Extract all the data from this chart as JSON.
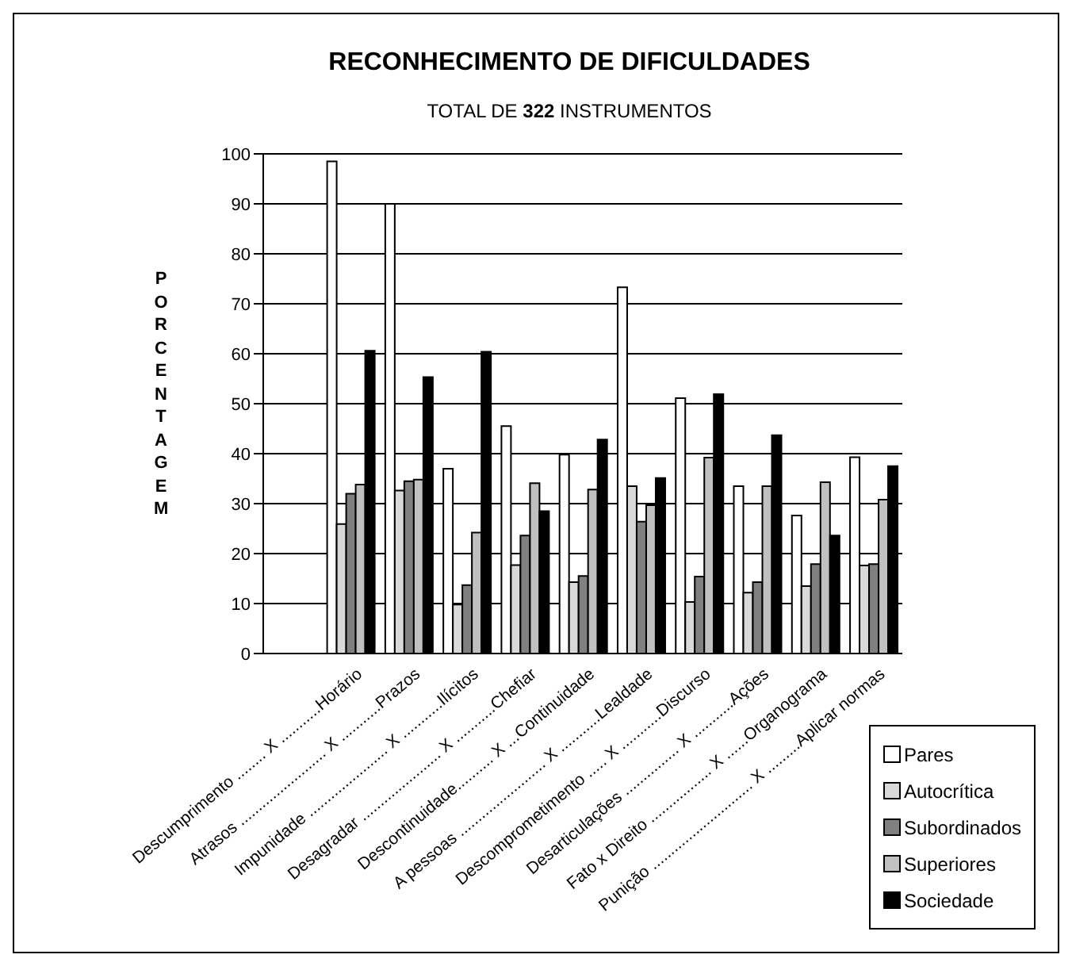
{
  "chart_data": {
    "type": "bar",
    "title": "RECONHECIMENTO DE DIFICULDADES",
    "subtitle": "TOTAL DE 322 INSTRUMENTOS",
    "ylabel": "PORCENTAGEM",
    "categories": [
      null,
      "Descumprimento ........ X ...........Horário",
      "Atrasos ........................ X ...........Prazos",
      "Impunidade ...................... X ...........Ilícitos",
      "Desagradar ...................... X ...........Chefiar",
      "Descontinuidade.......... X ...Continuidade",
      "A pessoas ........................ X ...........Lealdade",
      "Descomprometimento ..... X ...........Discurso",
      "Desarticulações ............... X ...........Ações",
      "Fato x  Direito ................. X ......Organograma",
      "Punição ............................ X .........Aplicar normas"
    ],
    "series": [
      {
        "name": "Pares",
        "color": "#ffffff",
        "values": [
          null,
          98.5,
          90,
          37,
          45.5,
          39.8,
          73.3,
          51.1,
          33.5,
          27.6,
          39.3
        ]
      },
      {
        "name": "Autocrítica",
        "color": "#d9d9d9",
        "values": [
          null,
          25.9,
          32.6,
          9.8,
          17.7,
          14.3,
          33.5,
          10.3,
          12.2,
          13.5,
          17.6
        ]
      },
      {
        "name": "Subordinados",
        "color": "#808080",
        "values": [
          null,
          32,
          34.5,
          13.7,
          23.6,
          15.5,
          26.4,
          15.4,
          14.3,
          17.9,
          17.9
        ]
      },
      {
        "name": "Superiores",
        "color": "#c0c0c0",
        "values": [
          null,
          33.8,
          34.8,
          24.2,
          34.1,
          32.8,
          29.7,
          39.2,
          33.5,
          34.3,
          30.8
        ]
      },
      {
        "name": "Sociedade",
        "color": "#000000",
        "values": [
          null,
          60.6,
          55.3,
          60.4,
          28.5,
          42.8,
          35.1,
          51.9,
          43.7,
          23.6,
          37.5
        ]
      }
    ],
    "ylim": [
      0,
      100
    ],
    "yticks": [
      0,
      10,
      20,
      30,
      40,
      50,
      60,
      70,
      80,
      90,
      100
    ],
    "grid": "y",
    "legend": "bottom right"
  }
}
